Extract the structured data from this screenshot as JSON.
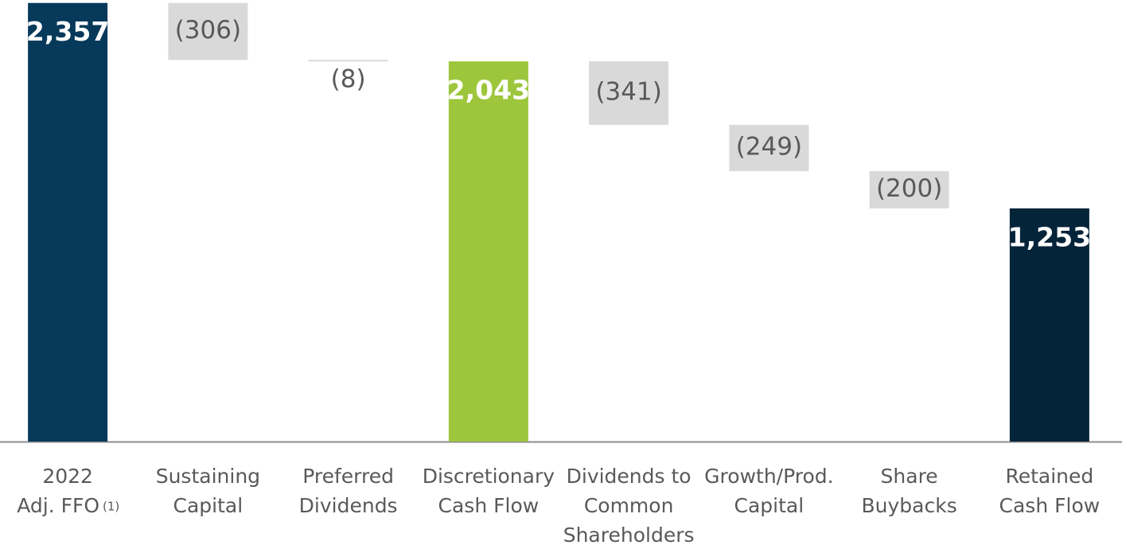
{
  "chart_data": {
    "type": "waterfall",
    "categories": [
      [
        "2022",
        "Adj. FFO"
      ],
      [
        "Sustaining",
        "Capital"
      ],
      [
        "Preferred",
        "Dividends"
      ],
      [
        "Discretionary",
        "Cash Flow"
      ],
      [
        "Dividends to",
        "Common",
        "Shareholders"
      ],
      [
        "Growth/Prod.",
        "Capital"
      ],
      [
        "Share",
        "Buybacks"
      ],
      [
        "Retained",
        "Cash Flow"
      ]
    ],
    "category_notes": [
      "(1)",
      null,
      null,
      null,
      null,
      null,
      null,
      null
    ],
    "values": [
      2357,
      -306,
      -8,
      2043,
      -341,
      -249,
      -200,
      1253
    ],
    "value_labels": [
      "2,357",
      "(306)",
      "(8)",
      "2,043",
      "(341)",
      "(249)",
      "(200)",
      "1,253"
    ],
    "kinds": [
      "total",
      "delta",
      "delta",
      "total",
      "delta",
      "delta",
      "delta",
      "total"
    ],
    "colors": [
      "#06395a",
      "#d9d9d9",
      "#d9d9d9",
      "#9dc63c",
      "#d9d9d9",
      "#d9d9d9",
      "#d9d9d9",
      "#04243a"
    ],
    "ylim": [
      0,
      2360
    ]
  }
}
